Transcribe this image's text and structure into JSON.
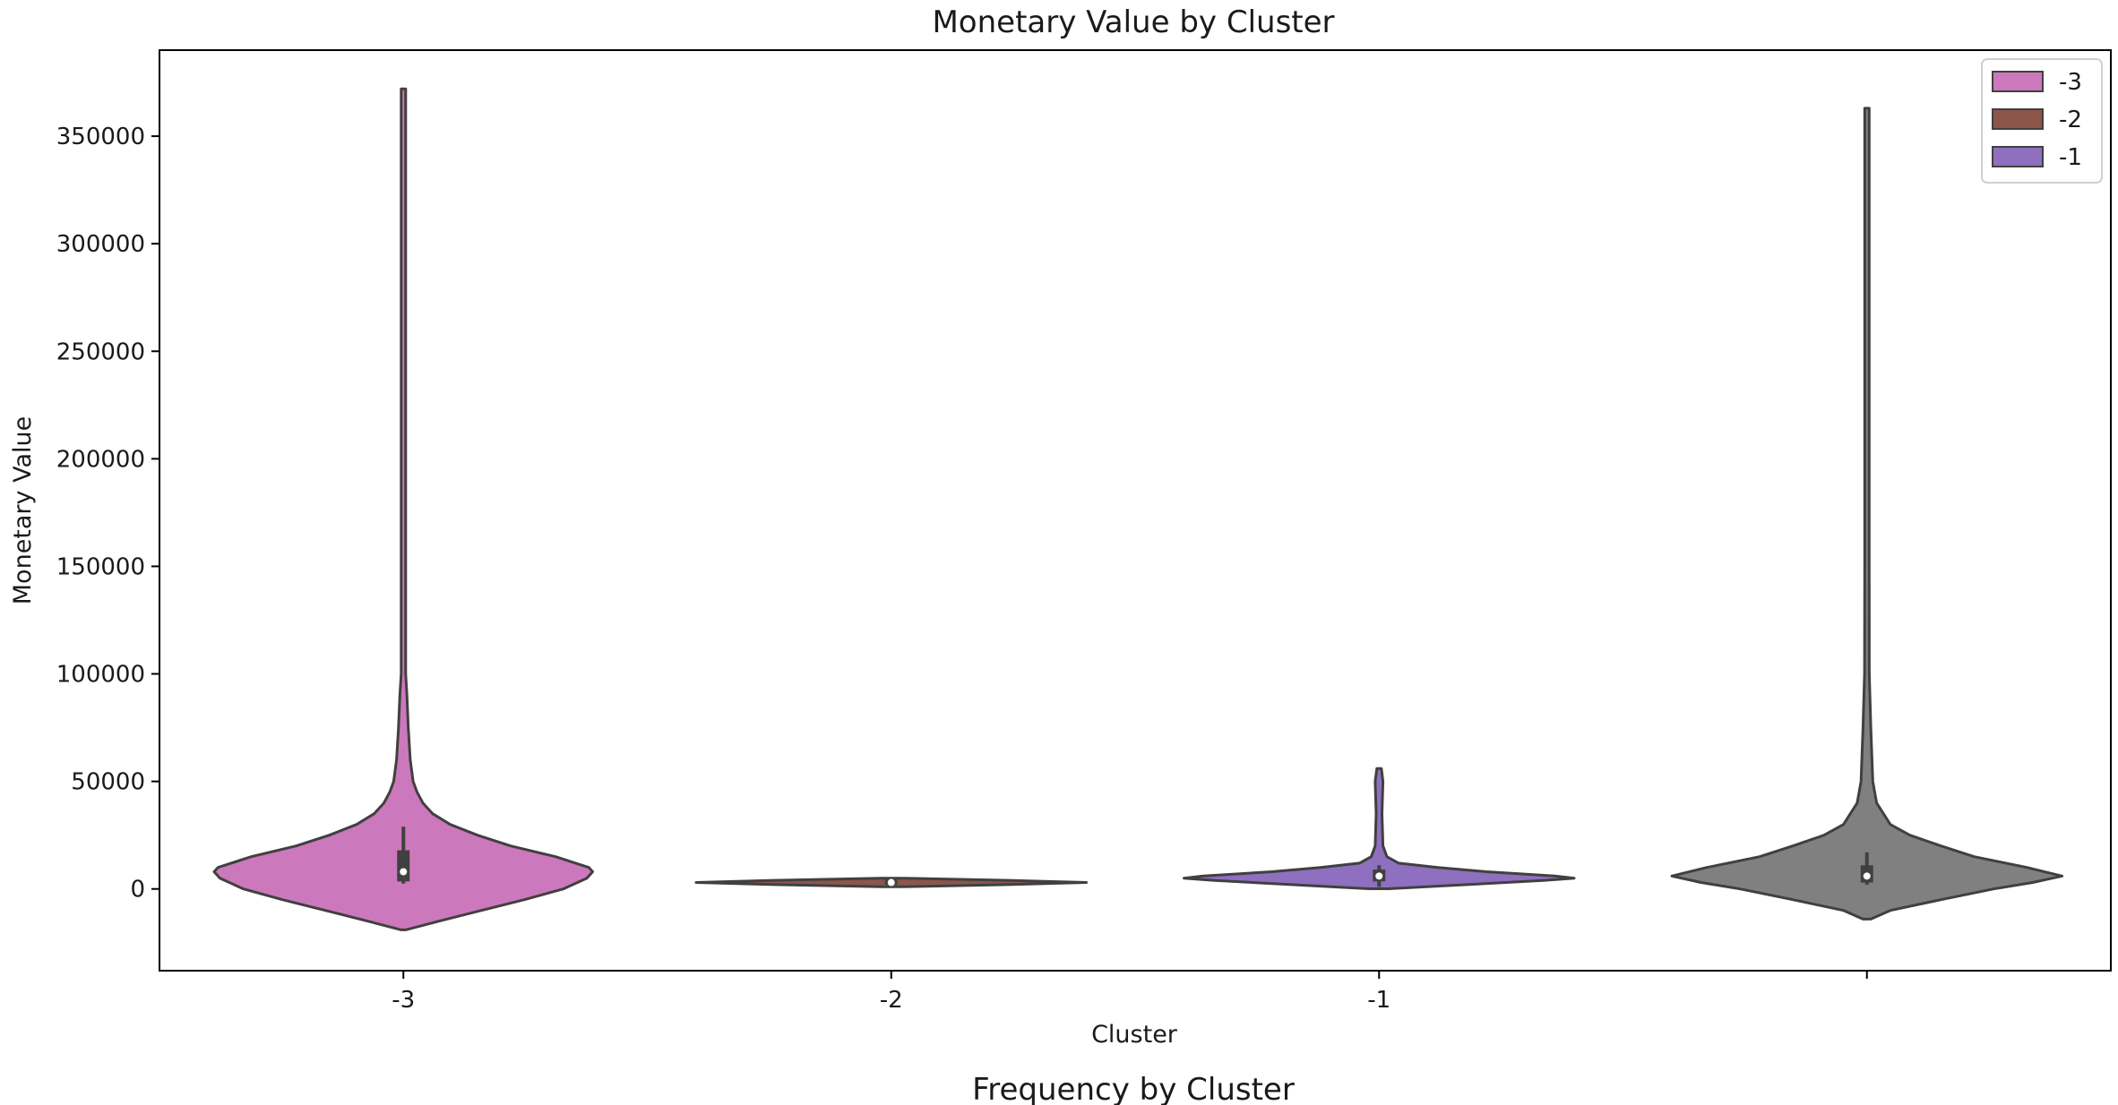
{
  "chart_data": {
    "type": "violin",
    "title": "Monetary Value by Cluster",
    "xlabel": "Cluster",
    "ylabel": "Monetary Value",
    "ylim": [
      -38000,
      390000
    ],
    "yticks": [
      0,
      50000,
      100000,
      150000,
      200000,
      250000,
      300000,
      350000
    ],
    "ytick_labels": [
      "0",
      "50000",
      "100000",
      "150000",
      "200000",
      "250000",
      "300000",
      "350000"
    ],
    "categories": [
      "-3",
      "-2",
      "-1",
      ""
    ],
    "grid": false,
    "legend": {
      "placement": "top-right",
      "entries": [
        "-3",
        "-2",
        "-1"
      ]
    },
    "series": [
      {
        "name": "-3",
        "color": "#cc78bc",
        "min": -19000,
        "max": 372000,
        "q1": 3500,
        "median": 8000,
        "q3": 18000,
        "whisker_low": 2500,
        "whisker_high": 29000,
        "profile": [
          [
            -19000,
            0.01
          ],
          [
            -15000,
            0.18
          ],
          [
            -10000,
            0.4
          ],
          [
            -5000,
            0.62
          ],
          [
            0,
            0.82
          ],
          [
            5000,
            0.94
          ],
          [
            8000,
            0.97
          ],
          [
            10000,
            0.95
          ],
          [
            15000,
            0.78
          ],
          [
            20000,
            0.55
          ],
          [
            25000,
            0.38
          ],
          [
            30000,
            0.24
          ],
          [
            35000,
            0.15
          ],
          [
            40000,
            0.1
          ],
          [
            45000,
            0.07
          ],
          [
            50000,
            0.05
          ],
          [
            60000,
            0.035
          ],
          [
            75000,
            0.025
          ],
          [
            90000,
            0.018
          ],
          [
            100000,
            0.01
          ],
          [
            150000,
            0.007
          ],
          [
            250000,
            0.005
          ],
          [
            372000,
            0.003
          ]
        ]
      },
      {
        "name": "-2",
        "color": "#8c564b",
        "min": 1000,
        "max": 5000,
        "q1": 2000,
        "median": 3000,
        "q3": 4500,
        "whisker_low": 1000,
        "whisker_high": 5000,
        "profile": [
          [
            1000,
            0.05
          ],
          [
            2000,
            0.6
          ],
          [
            3000,
            1.0
          ],
          [
            4000,
            0.6
          ],
          [
            5000,
            0.05
          ]
        ]
      },
      {
        "name": "-1",
        "color": "#8f6fbf",
        "min": 100,
        "max": 56000,
        "q1": 3500,
        "median": 6000,
        "q3": 9000,
        "whisker_low": 1000,
        "whisker_high": 11000,
        "profile": [
          [
            100,
            0.05
          ],
          [
            2000,
            0.45
          ],
          [
            4000,
            0.85
          ],
          [
            5000,
            1.0
          ],
          [
            6000,
            0.9
          ],
          [
            8000,
            0.55
          ],
          [
            10000,
            0.3
          ],
          [
            12000,
            0.1
          ],
          [
            15000,
            0.04
          ],
          [
            20000,
            0.02
          ],
          [
            35000,
            0.015
          ],
          [
            50000,
            0.02
          ],
          [
            56000,
            0.005
          ]
        ]
      },
      {
        "name": "",
        "color": "#808080",
        "min": -14000,
        "max": 363000,
        "q1": 3000,
        "median": 6000,
        "q3": 11000,
        "whisker_low": 2000,
        "whisker_high": 17000,
        "profile": [
          [
            -14000,
            0.02
          ],
          [
            -10000,
            0.12
          ],
          [
            -5000,
            0.38
          ],
          [
            0,
            0.65
          ],
          [
            3000,
            0.85
          ],
          [
            6000,
            1.0
          ],
          [
            10000,
            0.82
          ],
          [
            15000,
            0.55
          ],
          [
            20000,
            0.38
          ],
          [
            25000,
            0.22
          ],
          [
            30000,
            0.12
          ],
          [
            40000,
            0.05
          ],
          [
            50000,
            0.03
          ],
          [
            75000,
            0.02
          ],
          [
            100000,
            0.012
          ],
          [
            150000,
            0.008
          ],
          [
            250000,
            0.005
          ],
          [
            363000,
            0.003
          ]
        ]
      }
    ]
  },
  "next_title": "Frequency by Cluster"
}
